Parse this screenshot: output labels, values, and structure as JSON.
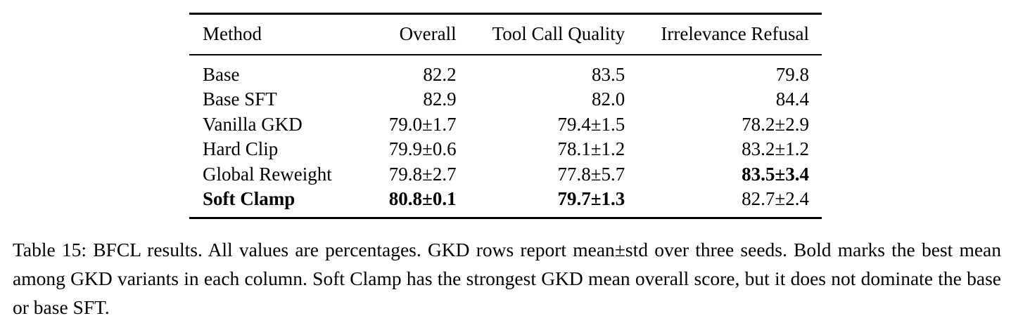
{
  "table": {
    "headers": {
      "method": "Method",
      "overall": "Overall",
      "tool_call_quality": "Tool Call Quality",
      "irrelevance_refusal": "Irrelevance Refusal"
    },
    "rows": [
      {
        "method": "Base",
        "overall": "82.2",
        "tool_call_quality": "83.5",
        "irrelevance_refusal": "79.8"
      },
      {
        "method": "Base SFT",
        "overall": "82.9",
        "tool_call_quality": "82.0",
        "irrelevance_refusal": "84.4"
      },
      {
        "method": "Vanilla GKD",
        "overall": "79.0±1.7",
        "tool_call_quality": "79.4±1.5",
        "irrelevance_refusal": "78.2±2.9"
      },
      {
        "method": "Hard Clip",
        "overall": "79.9±0.6",
        "tool_call_quality": "78.1±1.2",
        "irrelevance_refusal": "83.2±1.2"
      },
      {
        "method": "Global Reweight",
        "overall": "79.8±2.7",
        "tool_call_quality": "77.8±5.7",
        "irrelevance_refusal": "83.5±3.4"
      },
      {
        "method": "Soft Clamp",
        "overall": "80.8±0.1",
        "tool_call_quality": "79.7±1.3",
        "irrelevance_refusal": "82.7±2.4"
      }
    ]
  },
  "caption": "Table 15: BFCL results. All values are percentages. GKD rows report mean±std over three seeds. Bold marks the best mean among GKD variants in each column. Soft Clamp has the strongest GKD mean overall score, but it does not dominate the base or base SFT."
}
